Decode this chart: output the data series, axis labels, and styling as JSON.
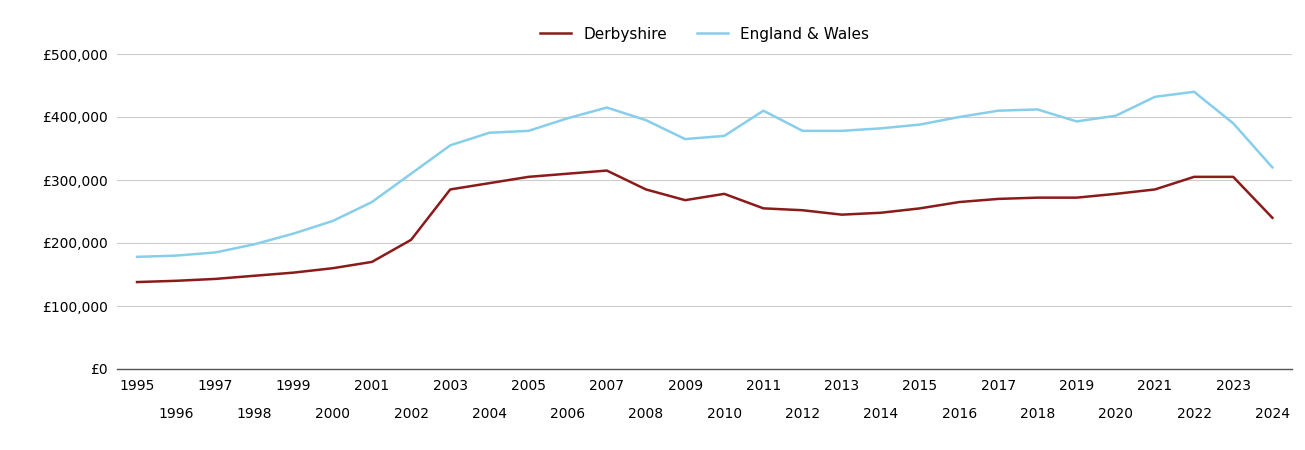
{
  "years": [
    1995,
    1996,
    1997,
    1998,
    1999,
    2000,
    2001,
    2002,
    2003,
    2004,
    2005,
    2006,
    2007,
    2008,
    2009,
    2010,
    2011,
    2012,
    2013,
    2014,
    2015,
    2016,
    2017,
    2018,
    2019,
    2020,
    2021,
    2022,
    2023,
    2024
  ],
  "derbyshire": [
    138000,
    140000,
    143000,
    148000,
    153000,
    160000,
    170000,
    205000,
    285000,
    295000,
    305000,
    310000,
    315000,
    285000,
    268000,
    278000,
    255000,
    252000,
    245000,
    248000,
    255000,
    265000,
    270000,
    272000,
    272000,
    278000,
    285000,
    305000,
    305000,
    240000
  ],
  "england_wales": [
    178000,
    180000,
    185000,
    198000,
    215000,
    235000,
    265000,
    310000,
    355000,
    375000,
    378000,
    398000,
    415000,
    395000,
    365000,
    370000,
    410000,
    378000,
    378000,
    382000,
    388000,
    400000,
    410000,
    412000,
    393000,
    402000,
    432000,
    440000,
    390000,
    320000
  ],
  "derbyshire_color": "#8B1A1A",
  "england_wales_color": "#87CEEB",
  "background_color": "#ffffff",
  "grid_color": "#cccccc",
  "ylim": [
    0,
    500000
  ],
  "yticks": [
    0,
    100000,
    200000,
    300000,
    400000,
    500000
  ],
  "ytick_labels": [
    "£0",
    "£100,000",
    "£200,000",
    "£300,000",
    "£400,000",
    "£500,000"
  ],
  "legend_derbyshire": "Derbyshire",
  "legend_england_wales": "England & Wales",
  "line_width": 1.8,
  "tick_fontsize": 10,
  "legend_fontsize": 11
}
